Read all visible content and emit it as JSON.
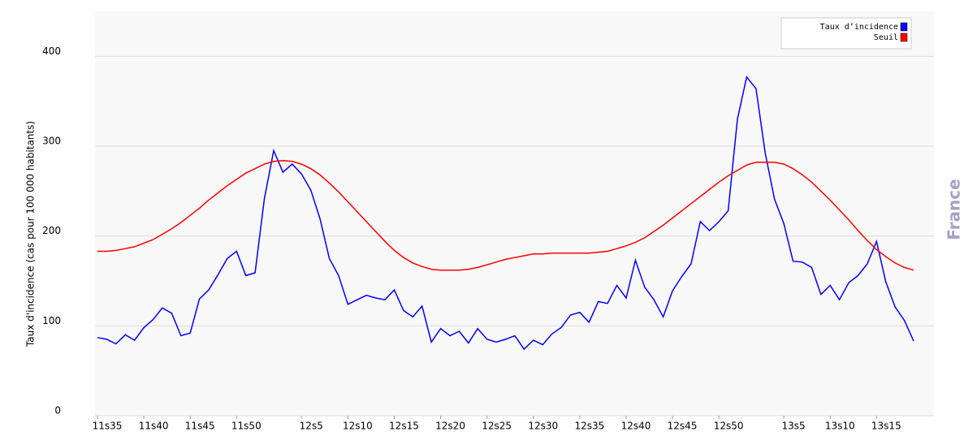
{
  "chart_data": {
    "type": "line",
    "ylabel": "Taux d'incidence (cas pour 100 000 habitants)",
    "annotation": "France",
    "categories": [
      "11s35",
      null,
      null,
      null,
      null,
      "11s40",
      null,
      null,
      null,
      null,
      "11s45",
      null,
      null,
      null,
      null,
      "11s50",
      null,
      null,
      null,
      null,
      null,
      null,
      "12s5",
      null,
      null,
      null,
      null,
      "12s10",
      null,
      null,
      null,
      null,
      "12s15",
      null,
      null,
      null,
      null,
      "12s20",
      null,
      null,
      null,
      null,
      "12s25",
      null,
      null,
      null,
      null,
      "12s30",
      null,
      null,
      null,
      null,
      "12s35",
      null,
      null,
      null,
      null,
      "12s40",
      null,
      null,
      null,
      null,
      "12s45",
      null,
      null,
      null,
      null,
      "12s50",
      null,
      null,
      null,
      null,
      null,
      null,
      "13s5",
      null,
      null,
      null,
      null,
      "13s10",
      null,
      null,
      null,
      null,
      "13s15",
      null,
      null,
      null,
      null
    ],
    "series": [
      {
        "name": "Taux d’incidence",
        "color": "#0000ff",
        "values": [
          87,
          85,
          80,
          90,
          84,
          98,
          107,
          120,
          114,
          89,
          92,
          130,
          140,
          157,
          175,
          183,
          156,
          159,
          242,
          295,
          271,
          280,
          269,
          251,
          219,
          175,
          156,
          124,
          129,
          134,
          131,
          129,
          140,
          117,
          110,
          122,
          82,
          97,
          89,
          94,
          81,
          97,
          85,
          82,
          85,
          89,
          74,
          84,
          79,
          91,
          98,
          112,
          115,
          104,
          127,
          125,
          145,
          131,
          173,
          143,
          129,
          110,
          139,
          155,
          169,
          216,
          206,
          216,
          228,
          330,
          377,
          364,
          292,
          241,
          214,
          172,
          171,
          165,
          135,
          145,
          129,
          148,
          156,
          169,
          194,
          149,
          121,
          106,
          83
        ]
      },
      {
        "name": "Seuil",
        "color": "#ff0000",
        "values": [
          183,
          183,
          184,
          186,
          188,
          192,
          196,
          202,
          208,
          215,
          223,
          231,
          240,
          248,
          256,
          263,
          270,
          275,
          280,
          283,
          284,
          283,
          280,
          275,
          268,
          259,
          249,
          238,
          227,
          216,
          205,
          194,
          184,
          176,
          170,
          166,
          163,
          162,
          162,
          162,
          163,
          165,
          168,
          171,
          174,
          176,
          178,
          180,
          180,
          181,
          181,
          181,
          181,
          181,
          182,
          183,
          186,
          189,
          193,
          198,
          205,
          212,
          220,
          228,
          236,
          244,
          252,
          260,
          267,
          273,
          279,
          282,
          282,
          282,
          280,
          275,
          268,
          260,
          250,
          240,
          229,
          218,
          206,
          195,
          185,
          177,
          170,
          165,
          162
        ]
      }
    ],
    "ylim": [
      0,
      450
    ],
    "yticks": [
      0,
      100,
      200,
      300,
      400
    ],
    "grid": true,
    "legend": "top-right"
  }
}
